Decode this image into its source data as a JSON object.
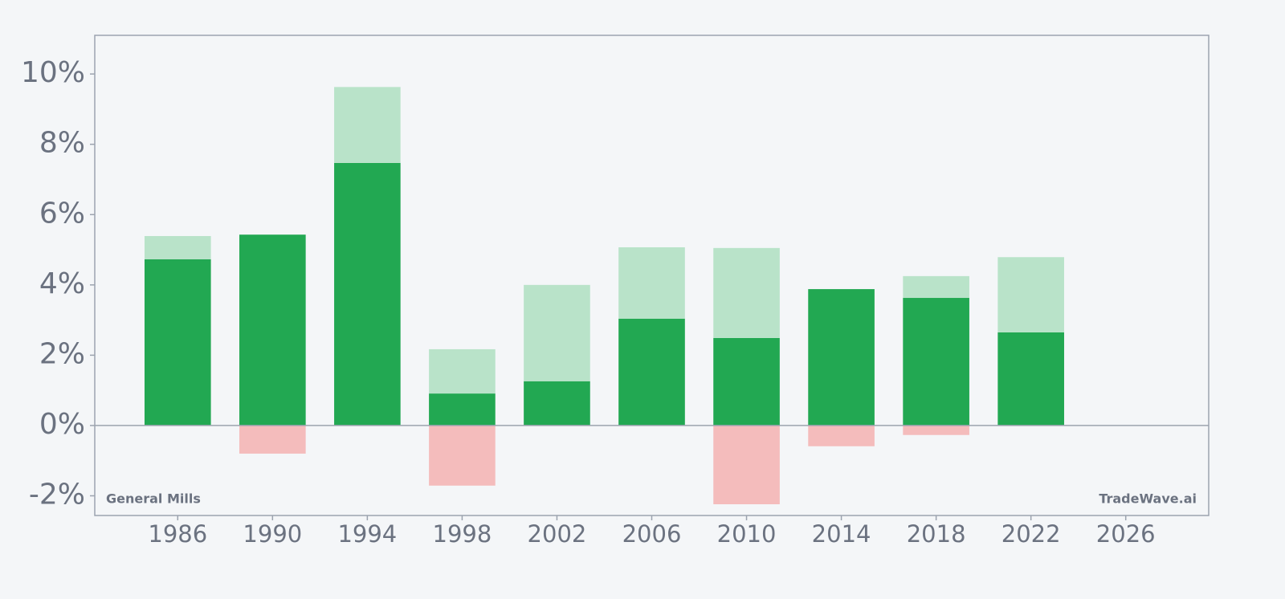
{
  "chart_data": {
    "type": "bar",
    "x": [
      1986,
      1990,
      1994,
      1998,
      2002,
      2006,
      2010,
      2014,
      2018,
      2022
    ],
    "series": [
      {
        "color": "#22a852",
        "values": [
          4.73,
          5.43,
          7.47,
          0.91,
          1.26,
          3.04,
          2.49,
          3.88,
          3.63,
          2.65
        ]
      },
      {
        "color": "#b9e3c9",
        "values": [
          0.66,
          0,
          2.16,
          1.26,
          2.74,
          2.03,
          2.56,
          0,
          0.62,
          2.14
        ]
      },
      {
        "color": "#f4bcbc",
        "values": [
          0,
          -0.8,
          0,
          -1.71,
          0,
          0,
          -2.24,
          -0.59,
          -0.27,
          0
        ]
      }
    ],
    "xlim": [
      1982.5,
      2029.5
    ],
    "xticks": [
      1986,
      1990,
      1994,
      1998,
      2002,
      2006,
      2010,
      2014,
      2018,
      2022,
      2026
    ],
    "ylim": [
      -2.56,
      11.1
    ],
    "yticks": [
      {
        "value": -2,
        "label": "-2%"
      },
      {
        "value": 0,
        "label": "0%"
      },
      {
        "value": 2,
        "label": "2%"
      },
      {
        "value": 4,
        "label": "4%"
      },
      {
        "value": 6,
        "label": "6%"
      },
      {
        "value": 8,
        "label": "8%"
      },
      {
        "value": 10,
        "label": "10%"
      }
    ],
    "annotations": [
      "General Mills",
      "TradeWave.ai"
    ]
  }
}
